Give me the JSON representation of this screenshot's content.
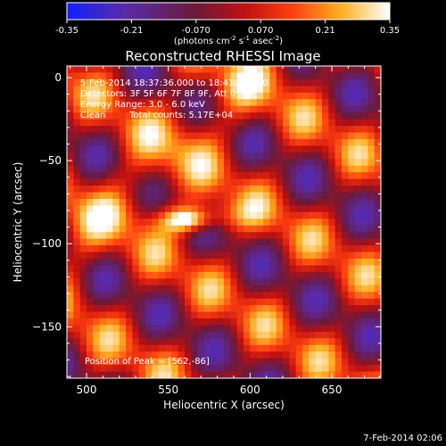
{
  "chart_data": {
    "type": "heatmap",
    "title": "Reconstructed RHESSI Image",
    "xlabel": "Heliocentric X (arcsec)",
    "ylabel": "Heliocentric Y (arcsec)",
    "xlim": [
      488,
      680
    ],
    "ylim": [
      -181,
      7
    ],
    "x_ticks": [
      500,
      550,
      600,
      650
    ],
    "y_ticks": [
      0,
      -50,
      -100,
      -150
    ],
    "colorbar": {
      "unit_html": "(photons cm<tspan baseline-shift='super' font-size='7'>-2</tspan> s<tspan baseline-shift='super' font-size='7'>-1</tspan> asec<tspan baseline-shift='super' font-size='7'>-2</tspan>)",
      "unit_text": "(photons cm-2 s-1 asec-2)",
      "range": [
        -0.35,
        0.35
      ],
      "ticks": [
        "-0.35",
        "-0.21",
        "-0.070",
        "0.070",
        "0.21",
        "0.35"
      ],
      "colormap": "blue-purple-red-orange-yellow-white"
    },
    "annotations": {
      "line1": "5-Feb-2014 18:37:36.000 to 18:41:36.000",
      "line2": "Detectors: 3F 5F 6F 7F 8F 9F, Att 0",
      "line3": "Energy Range: 3.0 - 6.0 keV",
      "line4_a": "Clean",
      "line4_b": "Total counts: 5.17E+04",
      "peak": "Position of Peak = [562,-86]"
    },
    "peak": {
      "x": 562,
      "y": -86
    },
    "footer_date": "7-Feb-2014 02:06"
  }
}
